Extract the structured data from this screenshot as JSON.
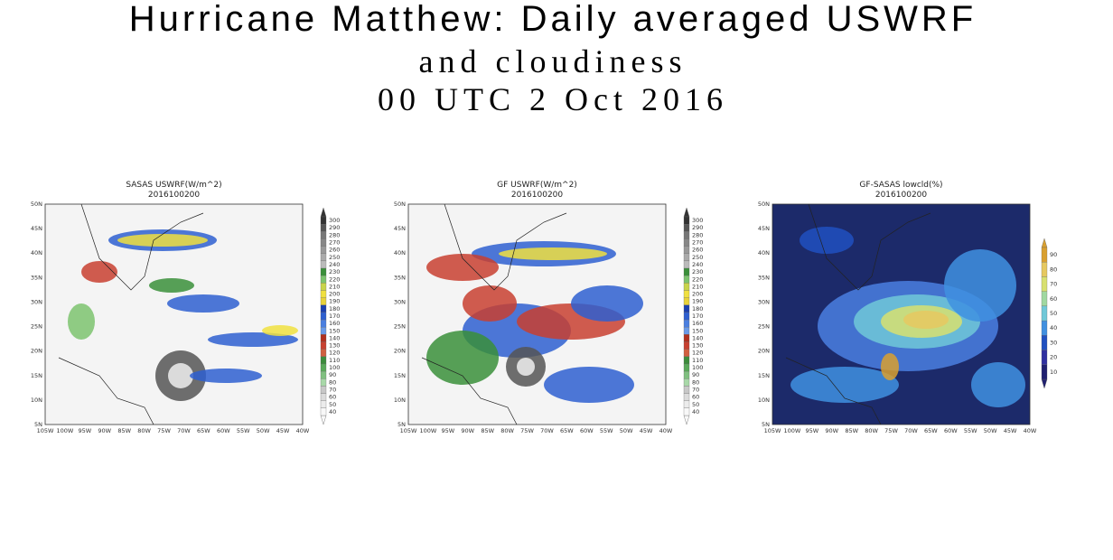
{
  "title": {
    "line1": "Hurricane Matthew: Daily averaged USWRF",
    "line2": "and cloudiness",
    "line3": "00 UTC 2 Oct 2016"
  },
  "panels": [
    {
      "title": "SASAS USWRF(W/m^2)",
      "date": "2016100200",
      "lat_labels": [
        "50N",
        "45N",
        "40N",
        "35N",
        "30N",
        "25N",
        "20N",
        "15N",
        "10N",
        "5N"
      ],
      "lon_labels": [
        "105W",
        "100W",
        "95W",
        "90W",
        "85W",
        "80W",
        "75W",
        "70W",
        "65W",
        "60W",
        "55W",
        "50W",
        "45W",
        "40W"
      ],
      "colorbar": [
        300,
        290,
        280,
        270,
        260,
        250,
        240,
        230,
        220,
        210,
        200,
        190,
        180,
        170,
        160,
        150,
        140,
        130,
        120,
        110,
        100,
        90,
        80,
        70,
        60,
        50,
        40
      ]
    },
    {
      "title": "GF USWRF(W/m^2)",
      "date": "2016100200",
      "lat_labels": [
        "50N",
        "45N",
        "40N",
        "35N",
        "30N",
        "25N",
        "20N",
        "15N",
        "10N",
        "5N"
      ],
      "lon_labels": [
        "105W",
        "100W",
        "95W",
        "90W",
        "85W",
        "80W",
        "75W",
        "70W",
        "65W",
        "60W",
        "55W",
        "50W",
        "45W",
        "40W"
      ],
      "colorbar": [
        300,
        290,
        280,
        270,
        260,
        250,
        240,
        230,
        220,
        210,
        200,
        190,
        180,
        170,
        160,
        150,
        140,
        130,
        120,
        110,
        100,
        90,
        80,
        70,
        60,
        50,
        40
      ]
    },
    {
      "title": "GF-SASAS lowcld(%)",
      "date": "2016100200",
      "lat_labels": [
        "50N",
        "45N",
        "40N",
        "35N",
        "30N",
        "25N",
        "20N",
        "15N",
        "10N",
        "5N"
      ],
      "lon_labels": [
        "105W",
        "100W",
        "95W",
        "90W",
        "85W",
        "80W",
        "75W",
        "70W",
        "65W",
        "60W",
        "55W",
        "50W",
        "45W",
        "40W"
      ],
      "colorbar": [
        90,
        80,
        70,
        60,
        50,
        40,
        30,
        20,
        10
      ]
    }
  ]
}
